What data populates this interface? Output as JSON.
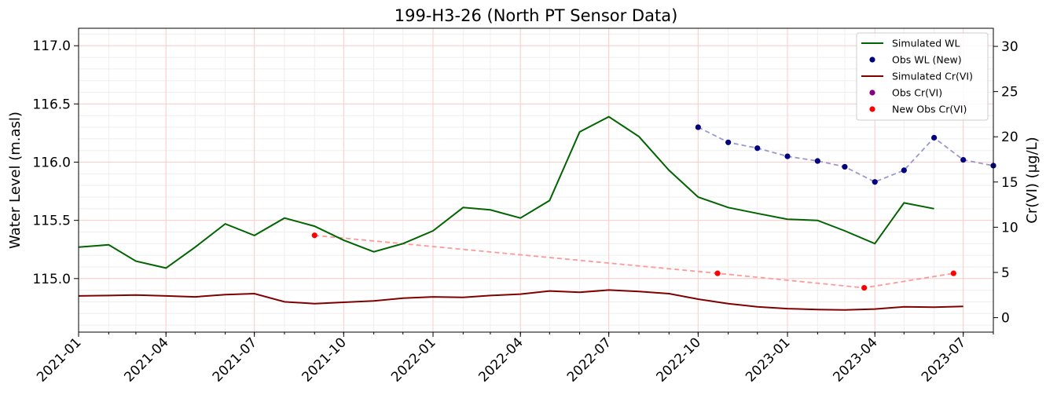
{
  "chart_data": {
    "type": "line",
    "title": "199-H3-26 (North PT Sensor Data)",
    "ylabel_left": "Water Level (m.asl)",
    "ylabel_right": "Cr(VI) (μg/L)",
    "xlim": [
      "2021-01-01",
      "2023-08-01"
    ],
    "ylim_left": [
      114.54,
      117.15
    ],
    "ylim_right": [
      -1.6,
      32.0
    ],
    "x_ticks": [
      "2021-01",
      "2021-04",
      "2021-07",
      "2021-10",
      "2022-01",
      "2022-04",
      "2022-07",
      "2022-10",
      "2023-01",
      "2023-04",
      "2023-07"
    ],
    "y_ticks_left": [
      "115.0",
      "115.5",
      "116.0",
      "116.5",
      "117.0"
    ],
    "y_ticks_right": [
      "0",
      "5",
      "10",
      "15",
      "20",
      "25",
      "30"
    ],
    "grid": true,
    "legend_position": "top-right",
    "legend": [
      "Simulated WL",
      "Obs WL (New)",
      "Simulated Cr(VI)",
      "Obs Cr(VI)",
      "New Obs Cr(VI)"
    ],
    "colors": {
      "simulated_wl": "#006400",
      "obs_wl": "#000080",
      "obs_wl_line": "#9999cc",
      "simulated_cr": "#800000",
      "obs_cr": "#800080",
      "new_obs_cr": "#ff0000",
      "new_obs_cr_line": "#ff9999"
    },
    "series": [
      {
        "name": "Simulated WL",
        "axis": "left",
        "style": "line",
        "x": [
          "2021-01-01",
          "2021-02-01",
          "2021-03-01",
          "2021-04-01",
          "2021-05-01",
          "2021-06-01",
          "2021-07-01",
          "2021-08-01",
          "2021-09-01",
          "2021-10-01",
          "2021-11-01",
          "2021-12-01",
          "2022-01-01",
          "2022-02-01",
          "2022-03-01",
          "2022-04-01",
          "2022-05-01",
          "2022-06-01",
          "2022-07-01",
          "2022-08-01",
          "2022-09-01",
          "2022-10-01",
          "2022-11-01",
          "2022-12-01",
          "2023-01-01",
          "2023-02-01",
          "2023-03-01",
          "2023-04-01",
          "2023-05-01",
          "2023-06-01"
        ],
        "y": [
          115.27,
          115.29,
          115.15,
          115.09,
          115.27,
          115.47,
          115.37,
          115.52,
          115.45,
          115.33,
          115.23,
          115.3,
          115.41,
          115.61,
          115.59,
          115.52,
          115.67,
          116.26,
          116.39,
          116.22,
          115.93,
          115.7,
          115.61,
          115.56,
          115.51,
          115.5,
          115.41,
          115.3,
          115.65,
          115.6
        ]
      },
      {
        "name": "Obs WL (New)",
        "axis": "left",
        "style": "markers+dashed",
        "x": [
          "2022-10-01",
          "2022-11-01",
          "2022-12-01",
          "2023-01-01",
          "2023-02-01",
          "2023-03-01",
          "2023-04-01",
          "2023-05-01",
          "2023-06-01",
          "2023-07-01",
          "2023-08-01"
        ],
        "y": [
          116.3,
          116.17,
          116.12,
          116.05,
          116.01,
          115.96,
          115.83,
          115.93,
          116.21,
          116.02,
          115.97
        ]
      },
      {
        "name": "Simulated Cr(VI)",
        "axis": "right",
        "style": "line",
        "x": [
          "2021-01-01",
          "2021-02-01",
          "2021-03-01",
          "2021-04-01",
          "2021-05-01",
          "2021-06-01",
          "2021-07-01",
          "2021-08-01",
          "2021-09-01",
          "2021-10-01",
          "2021-11-01",
          "2021-12-01",
          "2022-01-01",
          "2022-02-01",
          "2022-03-01",
          "2022-04-01",
          "2022-05-01",
          "2022-06-01",
          "2022-07-01",
          "2022-08-01",
          "2022-09-01",
          "2022-10-01",
          "2022-11-01",
          "2022-12-01",
          "2023-01-01",
          "2023-02-01",
          "2023-03-01",
          "2023-04-01",
          "2023-05-01",
          "2023-06-01",
          "2023-07-01"
        ],
        "y": [
          2.4,
          2.45,
          2.5,
          2.4,
          2.3,
          2.55,
          2.65,
          1.75,
          1.55,
          1.7,
          1.85,
          2.15,
          2.3,
          2.25,
          2.45,
          2.6,
          2.95,
          2.8,
          3.05,
          2.9,
          2.65,
          2.05,
          1.55,
          1.2,
          1.0,
          0.9,
          0.85,
          0.95,
          1.2,
          1.15,
          1.25
        ]
      },
      {
        "name": "New Obs Cr(VI)",
        "axis": "right",
        "style": "markers+dashed",
        "x": [
          "2021-09-01",
          "2022-10-21",
          "2023-03-21",
          "2023-06-21"
        ],
        "y": [
          9.1,
          4.9,
          3.3,
          4.9
        ]
      }
    ]
  }
}
